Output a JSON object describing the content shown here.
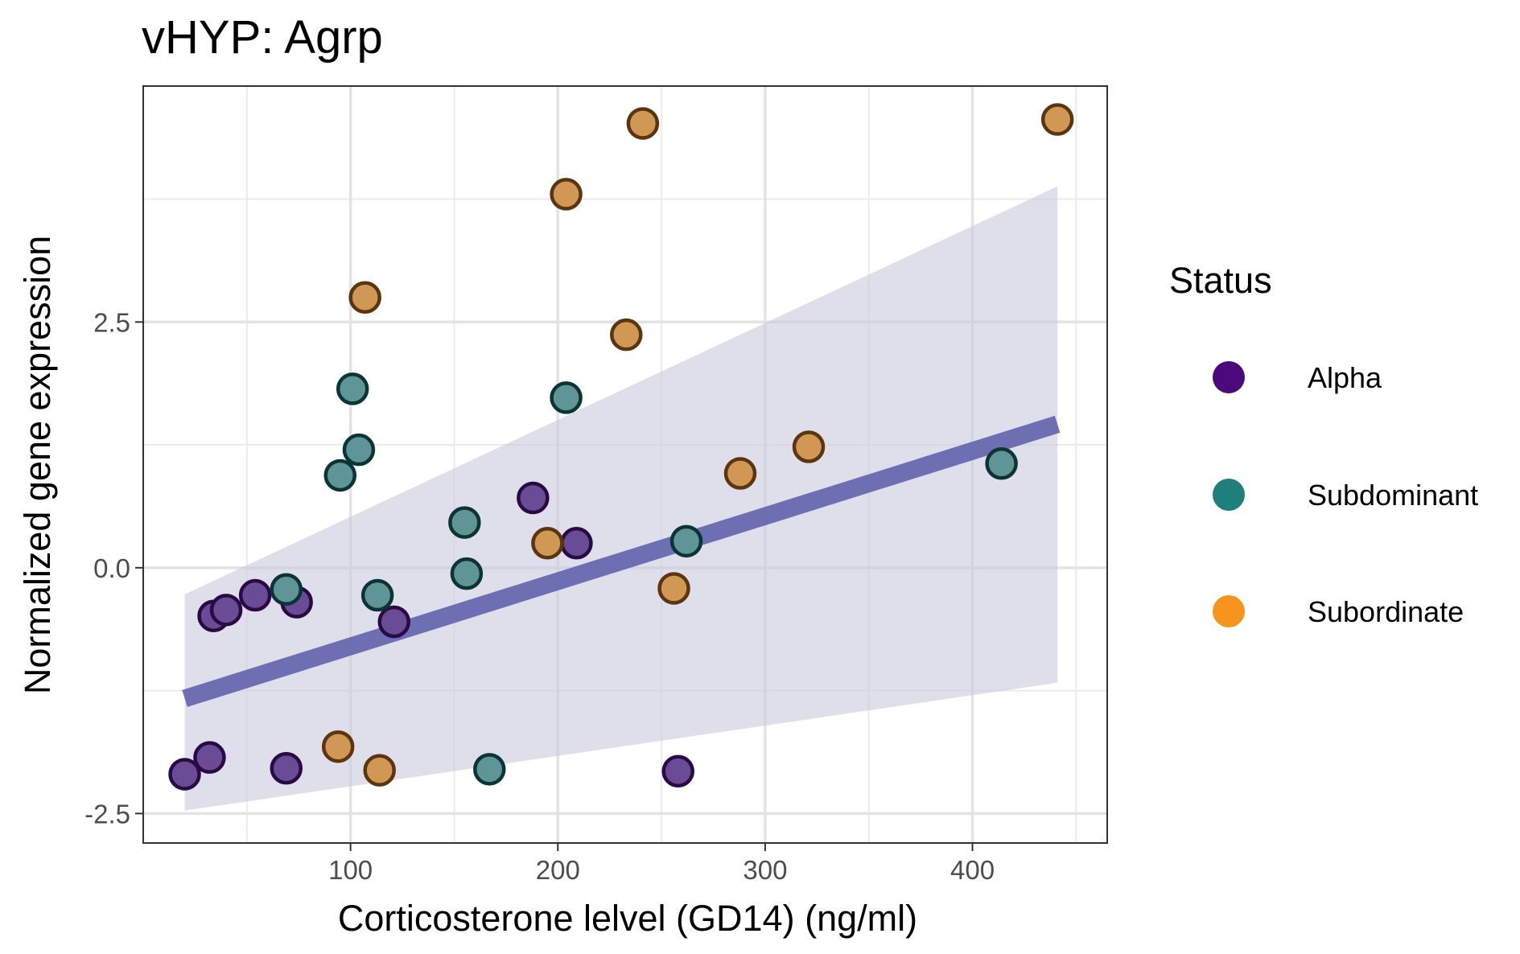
{
  "chart_data": {
    "type": "scatter",
    "title": "vHYP: Agrp",
    "xlabel": "Corticosterone lelvel (GD14) (ng/ml)",
    "ylabel": "Normalized gene expression",
    "xlim": [
      0,
      465
    ],
    "ylim": [
      -2.8,
      4.9
    ],
    "x_ticks": [
      100,
      200,
      300,
      400
    ],
    "x_tick_labels": [
      "100",
      "200",
      "300",
      "400"
    ],
    "x_minor_ticks": [
      50,
      150,
      250,
      350,
      450
    ],
    "y_ticks": [
      -2.5,
      0.0,
      2.5
    ],
    "y_tick_labels": [
      "-2.5",
      "0.0",
      "2.5"
    ],
    "y_minor_ticks": [
      -1.25,
      1.25,
      3.75
    ],
    "grid": true,
    "legend": {
      "title": "Status",
      "position": "right",
      "entries": [
        {
          "label": "Alpha",
          "color": "#4b0a7a"
        },
        {
          "label": "Subdominant",
          "color": "#1f7f7a"
        },
        {
          "label": "Subordinate",
          "color": "#f7941d"
        }
      ]
    },
    "series": [
      {
        "name": "Alpha",
        "fill": "#6a4c96",
        "stroke": "#2a0a45",
        "points": [
          [
            20,
            -2.1
          ],
          [
            32,
            -1.93
          ],
          [
            34,
            -0.49
          ],
          [
            40,
            -0.43
          ],
          [
            54,
            -0.28
          ],
          [
            69,
            -2.04
          ],
          [
            74,
            -0.35
          ],
          [
            121,
            -0.55
          ],
          [
            188,
            0.71
          ],
          [
            209,
            0.25
          ],
          [
            258,
            -2.07
          ]
        ]
      },
      {
        "name": "Subdominant",
        "fill": "#5f9597",
        "stroke": "#0b3535",
        "points": [
          [
            69,
            -0.22
          ],
          [
            95,
            0.94
          ],
          [
            101,
            1.82
          ],
          [
            104,
            1.2
          ],
          [
            113,
            -0.28
          ],
          [
            155,
            0.46
          ],
          [
            156,
            -0.06
          ],
          [
            167,
            -2.05
          ],
          [
            204,
            1.73
          ],
          [
            262,
            0.27
          ],
          [
            414,
            1.06
          ]
        ]
      },
      {
        "name": "Subordinate",
        "fill": "#d19855",
        "stroke": "#5a3510",
        "points": [
          [
            94,
            -1.82
          ],
          [
            107,
            2.75
          ],
          [
            114,
            -2.06
          ],
          [
            195,
            0.25
          ],
          [
            204,
            3.8
          ],
          [
            233,
            2.37
          ],
          [
            241,
            4.52
          ],
          [
            256,
            -0.21
          ],
          [
            288,
            0.96
          ],
          [
            321,
            1.23
          ],
          [
            441,
            4.56
          ]
        ]
      }
    ],
    "trend": {
      "type": "linear",
      "x": [
        20,
        441
      ],
      "y": [
        -1.33,
        1.46
      ],
      "color": "#5b5ba8",
      "band": {
        "x": [
          20,
          441
        ],
        "lower": [
          -2.47,
          -1.17
        ],
        "upper": [
          -0.27,
          3.88
        ],
        "color": "#c9c9e0"
      }
    }
  }
}
